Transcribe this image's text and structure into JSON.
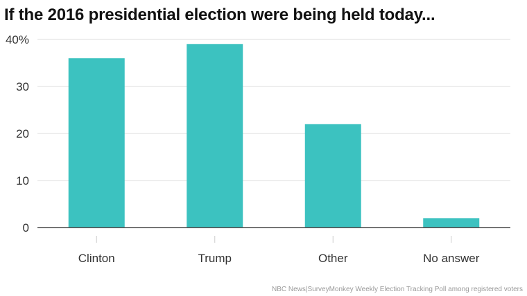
{
  "header": {
    "title": "If the 2016 presidential election were being held today..."
  },
  "footer": {
    "source": "NBC News|SurveyMonkey Weekly Election Tracking Poll among registered voters"
  },
  "chart_data": {
    "type": "bar",
    "title": "If the 2016 presidential election were being held today...",
    "categories": [
      "Clinton",
      "Trump",
      "Other",
      "No answer"
    ],
    "values": [
      36,
      39,
      22,
      2
    ],
    "ylim": [
      0,
      40
    ],
    "yticks": [
      0,
      10,
      20,
      30,
      40
    ],
    "ytick_labels": [
      "0",
      "10",
      "20",
      "30",
      "40%"
    ],
    "xlabel": "",
    "ylabel": "",
    "grid": true,
    "colors": {
      "bar": "#3cc2c0",
      "grid": "#dddddd",
      "axis": "#222222",
      "tick_mark": "#cccccc"
    }
  }
}
